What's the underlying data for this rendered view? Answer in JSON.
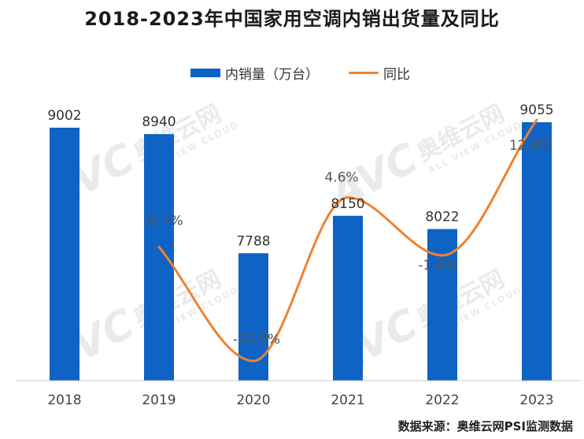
{
  "title": "2018-2023年中国家用空调内销出货量及同比",
  "source": "数据来源：奥维云网PSI监测数据",
  "watermark": {
    "logo": "AVC",
    "name": "奥维云网",
    "tagline": "ALL VIEW CLOUD"
  },
  "colors": {
    "bar": "#0e63c4",
    "line": "#ee8230",
    "axis": "#c8c8c8",
    "text": "#333333"
  },
  "chart_data": {
    "type": "bar",
    "categories": [
      "2018",
      "2019",
      "2020",
      "2021",
      "2022",
      "2023"
    ],
    "series": [
      {
        "name": "内销量（万台）",
        "type": "bar",
        "values": [
          9002,
          8940,
          7788,
          8150,
          8022,
          9055
        ]
      },
      {
        "name": "同比",
        "type": "line",
        "values": [
          null,
          -0.7,
          -12.9,
          4.6,
          -1.6,
          12.9
        ],
        "labels": [
          "",
          "-0.7%",
          "-12.9%",
          "4.6%",
          "-1.6%",
          "12.9%"
        ]
      }
    ],
    "value_labels": [
      "9002",
      "8940",
      "7788",
      "8150",
      "8022",
      "9055"
    ],
    "legend": "top-center",
    "grid": false
  }
}
